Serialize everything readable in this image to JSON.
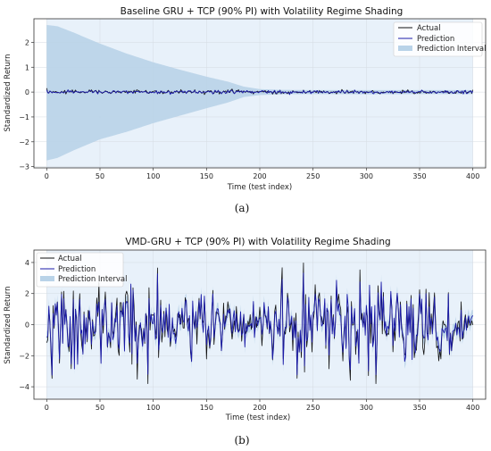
{
  "chart_data": [
    {
      "type": "line",
      "title": "Baseline GRU + TCP (90% PI) with Volatility Regime Shading",
      "xlabel": "Time (test index)",
      "ylabel": "Standardized Return",
      "xlim": [
        -12,
        412
      ],
      "ylim": [
        -3.05,
        2.95
      ],
      "xticks": [
        0,
        50,
        100,
        150,
        200,
        250,
        300,
        350,
        400
      ],
      "yticks": [
        -3,
        -2,
        -1,
        0,
        1,
        2
      ],
      "regime_shading": {
        "x_range": [
          0,
          400
        ],
        "color": "#e8f1fa"
      },
      "legend": {
        "position": "top-right",
        "entries": [
          "Actual",
          "Prediction",
          "Prediction Interval"
        ]
      },
      "series": [
        {
          "name": "Actual",
          "color": "#111111",
          "kind": "line"
        },
        {
          "name": "Prediction",
          "color": "#1a1aa8",
          "kind": "line"
        },
        {
          "name": "Prediction Interval",
          "color": "#b9d3e8",
          "kind": "band"
        }
      ],
      "band_profile": {
        "description_points_x": [
          0,
          10,
          25,
          50,
          75,
          100,
          125,
          150,
          170,
          185,
          200,
          220,
          250,
          300,
          350,
          400
        ],
        "upper": [
          2.7,
          2.65,
          2.4,
          1.95,
          1.55,
          1.2,
          0.9,
          0.62,
          0.42,
          0.22,
          0.12,
          0.09,
          0.08,
          0.08,
          0.08,
          0.08
        ],
        "lower": [
          -2.75,
          -2.65,
          -2.35,
          -1.9,
          -1.6,
          -1.25,
          -0.95,
          -0.65,
          -0.42,
          -0.2,
          -0.12,
          -0.09,
          -0.08,
          -0.09,
          -0.08,
          -0.08
        ]
      },
      "series_amplitude": 0.04
    },
    {
      "type": "line",
      "title": "VMD-GRU + TCP (90% PI) with Volatility Regime Shading",
      "xlabel": "Time (test index)",
      "ylabel": "Standardized Return",
      "xlim": [
        -12,
        412
      ],
      "ylim": [
        -4.8,
        4.8
      ],
      "xticks": [
        0,
        50,
        100,
        150,
        200,
        250,
        300,
        350,
        400
      ],
      "yticks": [
        -4,
        -2,
        0,
        2,
        4
      ],
      "regime_shading": {
        "x_range": [
          0,
          400
        ],
        "color": "#e8f1fa"
      },
      "legend": {
        "position": "top-left",
        "entries": [
          "Actual",
          "Prediction",
          "Prediction Interval"
        ]
      },
      "series": [
        {
          "name": "Actual",
          "color": "#111111",
          "kind": "line"
        },
        {
          "name": "Prediction",
          "color": "#1a1aa8",
          "kind": "line"
        },
        {
          "name": "Prediction Interval",
          "color": "#b9d3e8",
          "kind": "band"
        }
      ],
      "series_amplitude": 1.25,
      "band_halfwidth": 0.35
    }
  ],
  "captions": [
    "(a)",
    "(b)"
  ]
}
